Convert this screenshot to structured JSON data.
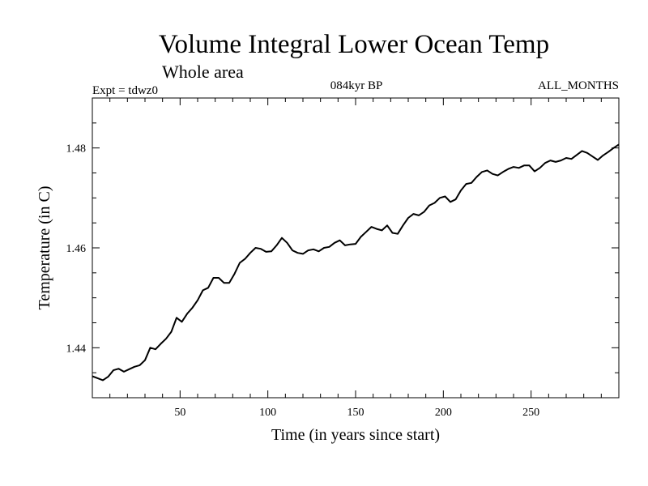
{
  "chart_data": {
    "type": "line",
    "title": "Volume Integral Lower Ocean Temp",
    "subtitle": "Whole area",
    "experiment": "Expt = tdwz0",
    "period": "084kyr BP",
    "months": "ALL_MONTHS",
    "xlabel": "Time (in years since start)",
    "ylabel": "Temperature (in C)",
    "xlim": [
      0,
      300
    ],
    "ylim": [
      1.43,
      1.49
    ],
    "xticks": [
      50,
      100,
      150,
      200,
      250
    ],
    "yticks": [
      1.44,
      1.46,
      1.48
    ],
    "xtick_labels": [
      "50",
      "100",
      "150",
      "200",
      "250"
    ],
    "ytick_labels": [
      "1.44",
      "1.46",
      "1.48"
    ],
    "grid": false,
    "series": [
      {
        "color": "#000000",
        "x": [
          0,
          3,
          6,
          9,
          12,
          15,
          18,
          21,
          24,
          27,
          30,
          33,
          36,
          39,
          42,
          45,
          48,
          51,
          54,
          57,
          60,
          63,
          66,
          69,
          72,
          75,
          78,
          81,
          84,
          87,
          90,
          93,
          96,
          99,
          102,
          105,
          108,
          111,
          114,
          117,
          120,
          123,
          126,
          129,
          132,
          135,
          138,
          141,
          144,
          147,
          150,
          153,
          156,
          159,
          162,
          165,
          168,
          171,
          174,
          177,
          180,
          183,
          186,
          189,
          192,
          195,
          198,
          201,
          204,
          207,
          210,
          213,
          216,
          219,
          222,
          225,
          228,
          231,
          234,
          237,
          240,
          243,
          246,
          249,
          252,
          255,
          258,
          261,
          264,
          267,
          270,
          273,
          276,
          279,
          282,
          285,
          288,
          291,
          294,
          297,
          300
        ],
        "y": [
          1.4343,
          1.4339,
          1.4335,
          1.4342,
          1.4355,
          1.4358,
          1.4352,
          1.4357,
          1.4362,
          1.4365,
          1.4375,
          1.44,
          1.4397,
          1.4408,
          1.4418,
          1.4432,
          1.446,
          1.4452,
          1.4468,
          1.448,
          1.4495,
          1.4515,
          1.452,
          1.454,
          1.454,
          1.453,
          1.453,
          1.4548,
          1.457,
          1.4578,
          1.459,
          1.46,
          1.4598,
          1.4592,
          1.4593,
          1.4605,
          1.462,
          1.461,
          1.4595,
          1.459,
          1.4588,
          1.4595,
          1.4597,
          1.4593,
          1.46,
          1.4602,
          1.461,
          1.4615,
          1.4605,
          1.4607,
          1.4608,
          1.4622,
          1.4632,
          1.4642,
          1.4638,
          1.4635,
          1.4645,
          1.463,
          1.4628,
          1.4645,
          1.466,
          1.4668,
          1.4665,
          1.4672,
          1.4685,
          1.469,
          1.47,
          1.4703,
          1.4692,
          1.4697,
          1.4715,
          1.4728,
          1.473,
          1.4742,
          1.4752,
          1.4755,
          1.4748,
          1.4745,
          1.4752,
          1.4758,
          1.4762,
          1.476,
          1.4765,
          1.4765,
          1.4753,
          1.476,
          1.477,
          1.4775,
          1.4772,
          1.4775,
          1.478,
          1.4778,
          1.4786,
          1.4794,
          1.479,
          1.4783,
          1.4776,
          1.4785,
          1.4792,
          1.48,
          1.4807
        ]
      }
    ]
  }
}
